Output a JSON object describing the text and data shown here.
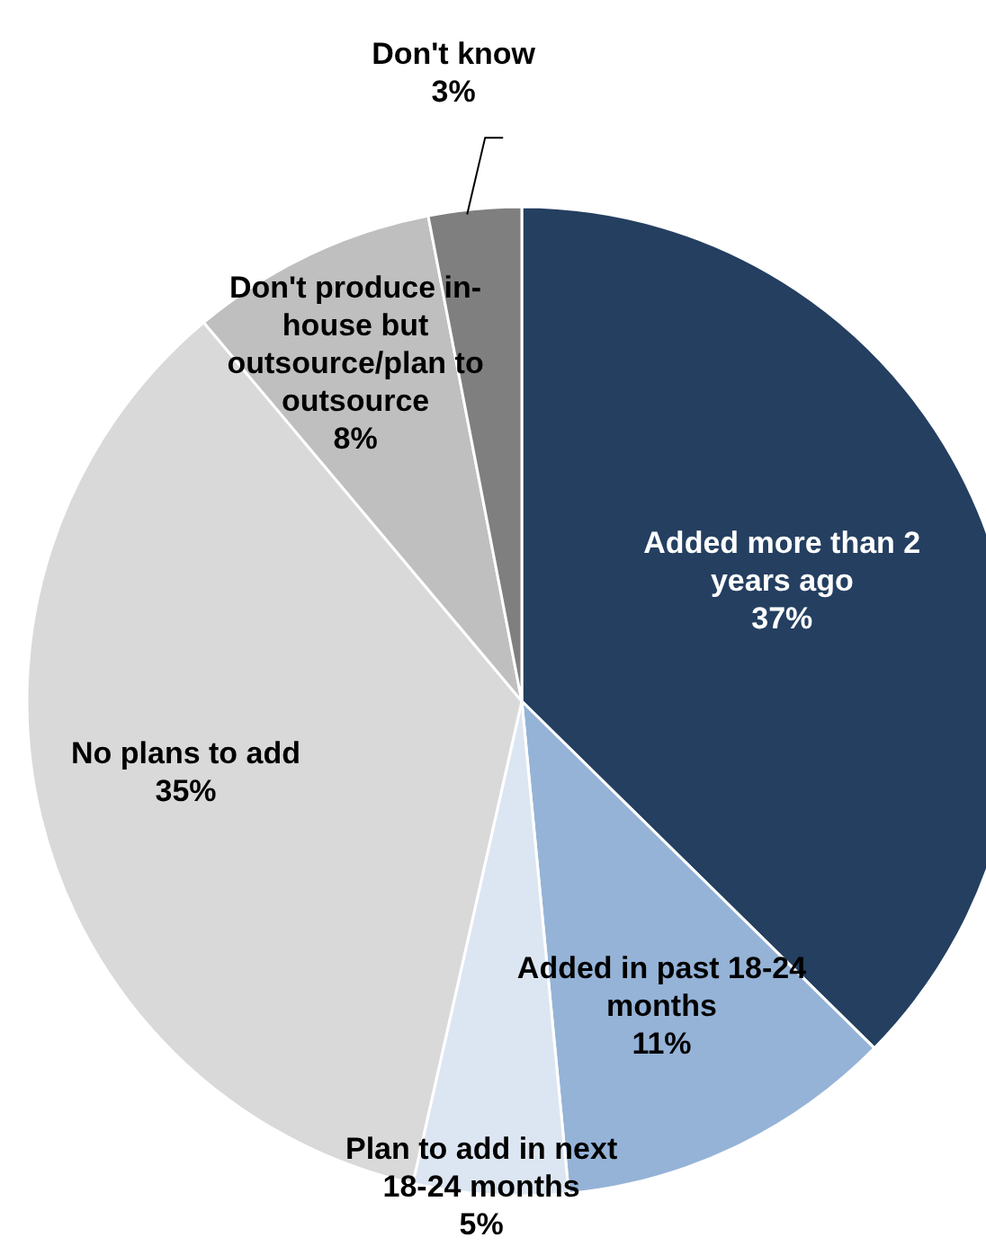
{
  "chart_data": {
    "type": "pie",
    "categories": [
      "Added more than 2 years ago",
      "Added in past 18-24 months",
      "Plan to add in next 18-24 months",
      "No plans to add",
      "Don't produce in-house but outsource/plan to outsource",
      "Don't know"
    ],
    "values": [
      37,
      11,
      5,
      35,
      8,
      3
    ],
    "value_labels": [
      "37%",
      "11%",
      "5%",
      "35%",
      "8%",
      "3%"
    ],
    "colors": [
      "#243f60",
      "#95b3d7",
      "#dce6f2",
      "#d9d9d9",
      "#bfbfbf",
      "#7f7f7f"
    ],
    "legend": false
  }
}
